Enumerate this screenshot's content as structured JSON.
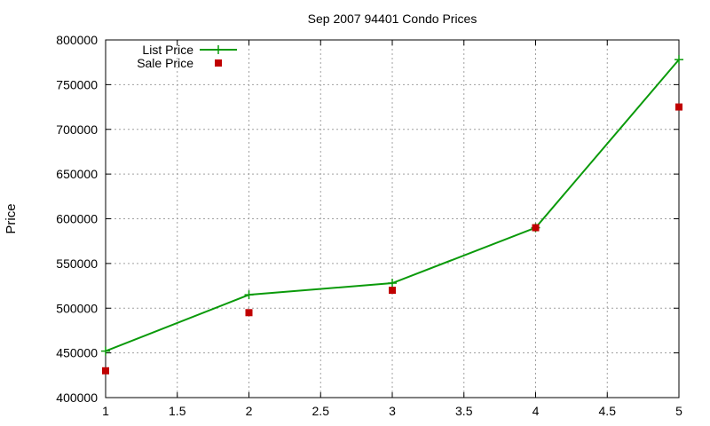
{
  "chart_data": {
    "type": "line",
    "title": "Sep 2007 94401 Condo Prices",
    "xlabel": "",
    "ylabel": "Price",
    "xlim": [
      1,
      5
    ],
    "ylim": [
      400000,
      800000
    ],
    "x_ticks": [
      1,
      1.5,
      2,
      2.5,
      3,
      3.5,
      4,
      4.5,
      5
    ],
    "x_tick_labels": [
      "1",
      "1.5",
      "2",
      "2.5",
      "3",
      "3.5",
      "4",
      "4.5",
      "5"
    ],
    "y_ticks": [
      400000,
      450000,
      500000,
      550000,
      600000,
      650000,
      700000,
      750000,
      800000
    ],
    "y_tick_labels": [
      "400000",
      "450000",
      "500000",
      "550000",
      "600000",
      "650000",
      "700000",
      "750000",
      "800000"
    ],
    "grid": true,
    "legend_position": "top-left",
    "x": [
      1,
      2,
      3,
      4,
      5
    ],
    "series": [
      {
        "name": "List Price",
        "style": "linespoints",
        "marker": "plus",
        "color": "#0a9a0a",
        "values": [
          452000,
          515000,
          528000,
          590000,
          778000
        ]
      },
      {
        "name": "Sale Price",
        "style": "points",
        "marker": "square",
        "color": "#c00000",
        "values": [
          430000,
          495000,
          520000,
          590000,
          725000
        ]
      }
    ]
  }
}
